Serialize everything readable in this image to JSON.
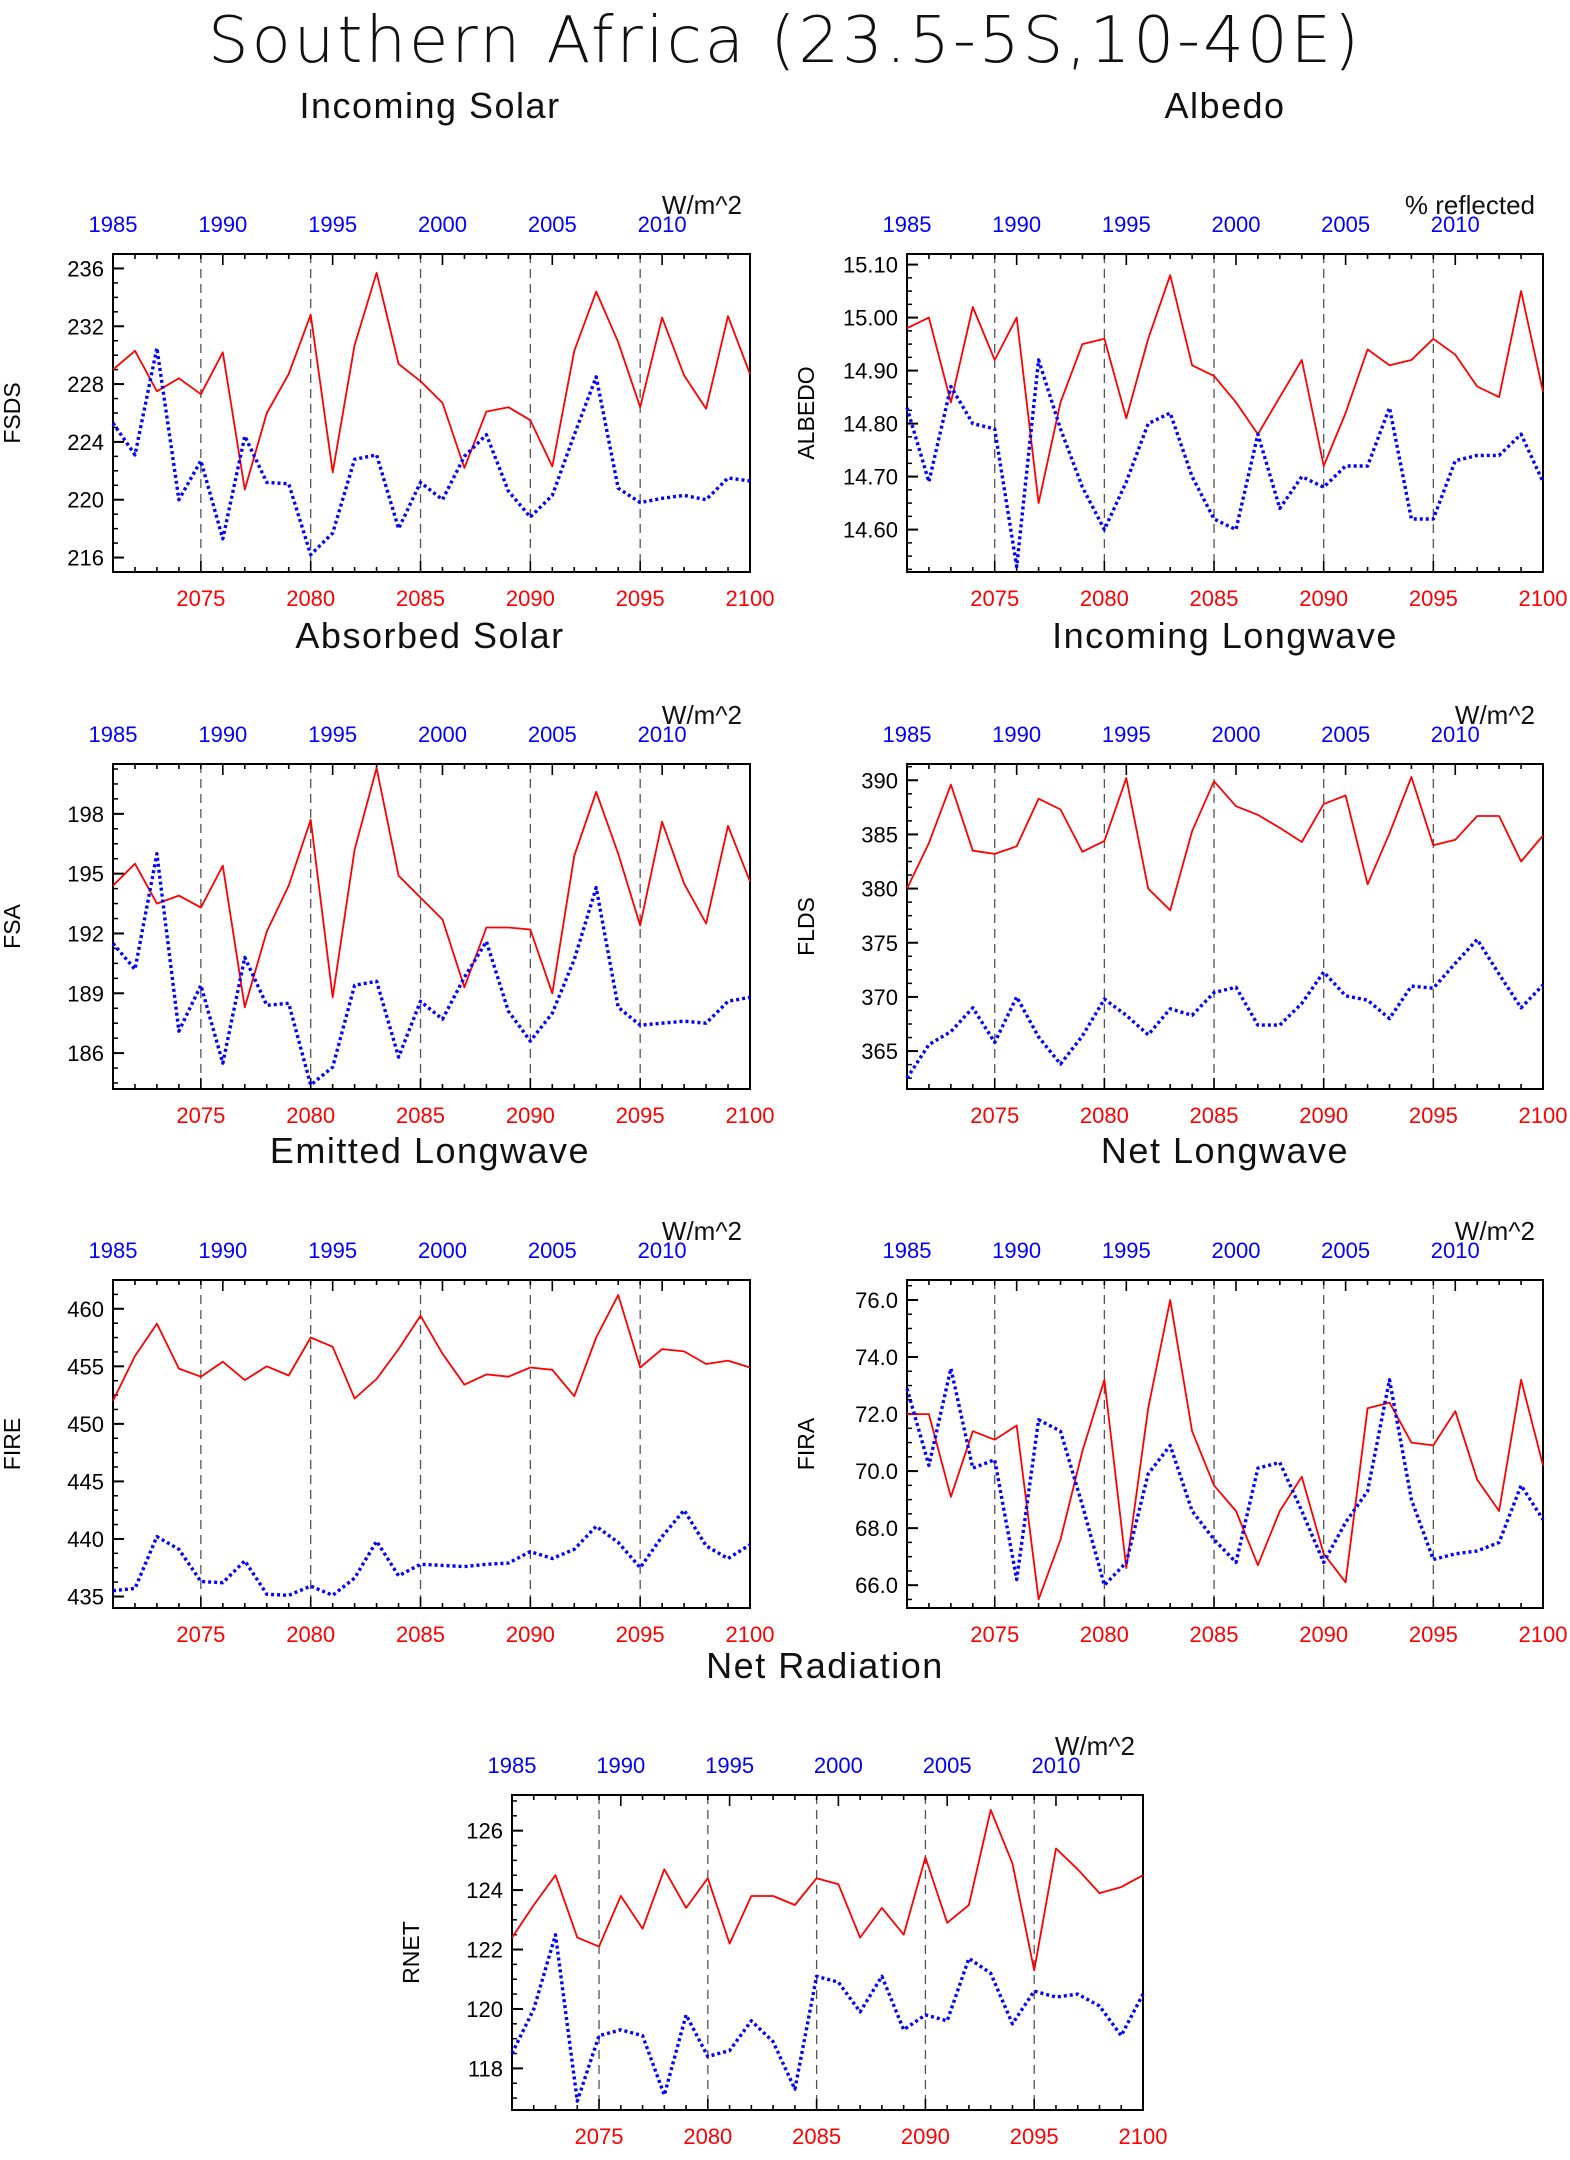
{
  "title": "Southern Africa (23.5-5S,10-40E)",
  "colors": {
    "future": "#ff0000",
    "historical": "#0000ff",
    "axis": "#000000"
  },
  "chart_data": [
    {
      "type": "line",
      "title": "Incoming Solar",
      "units": "W/m^2",
      "ylabel": "FSDS",
      "ylim": [
        215,
        237
      ],
      "yticks": [
        216,
        220,
        224,
        228,
        232,
        236
      ],
      "yfmt": 0,
      "x_future": {
        "range": [
          2071,
          2100
        ],
        "ticks": [
          2075,
          2080,
          2085,
          2090,
          2095,
          2100
        ]
      },
      "x_hist": {
        "range": [
          1985,
          2014
        ],
        "ticks": [
          1985,
          1990,
          1995,
          2000,
          2005,
          2010
        ]
      },
      "series": [
        {
          "role": "future",
          "values": [
            229.0,
            230.3,
            227.5,
            228.4,
            227.3,
            230.2,
            220.7,
            226.0,
            228.7,
            232.8,
            221.9,
            230.7,
            235.7,
            229.4,
            228.2,
            226.7,
            222.2,
            226.1,
            226.4,
            225.5,
            222.3,
            230.3,
            234.4,
            230.9,
            226.4,
            232.6,
            228.6,
            226.3,
            232.7,
            228.7
          ]
        },
        {
          "role": "historical",
          "values": [
            225.3,
            223.1,
            230.5,
            220.0,
            222.7,
            217.3,
            224.4,
            221.2,
            221.1,
            216.2,
            217.7,
            222.8,
            223.1,
            218.0,
            221.2,
            220.0,
            223.0,
            224.5,
            220.6,
            218.8,
            220.3,
            224.5,
            228.5,
            220.8,
            219.8,
            220.1,
            220.3,
            220.0,
            221.5,
            221.3
          ]
        }
      ]
    },
    {
      "type": "line",
      "title": "Albedo",
      "units": "% reflected",
      "ylabel": "ALBEDO",
      "ylim": [
        14.52,
        15.12
      ],
      "yticks": [
        14.6,
        14.7,
        14.8,
        14.9,
        15.0,
        15.1
      ],
      "yfmt": 2,
      "x_future": {
        "range": [
          2071,
          2100
        ],
        "ticks": [
          2075,
          2080,
          2085,
          2090,
          2095,
          2100
        ]
      },
      "x_hist": {
        "range": [
          1985,
          2014
        ],
        "ticks": [
          1985,
          1990,
          1995,
          2000,
          2005,
          2010
        ]
      },
      "series": [
        {
          "role": "future",
          "values": [
            14.98,
            15.0,
            14.84,
            15.02,
            14.92,
            15.0,
            14.65,
            14.84,
            14.95,
            14.96,
            14.81,
            14.96,
            15.08,
            14.91,
            14.89,
            14.84,
            14.78,
            14.85,
            14.92,
            14.72,
            14.82,
            14.94,
            14.91,
            14.92,
            14.96,
            14.93,
            14.87,
            14.85,
            15.05,
            14.86
          ]
        },
        {
          "role": "historical",
          "values": [
            14.83,
            14.69,
            14.87,
            14.8,
            14.79,
            14.53,
            14.92,
            14.79,
            14.68,
            14.6,
            14.69,
            14.8,
            14.82,
            14.7,
            14.62,
            14.6,
            14.78,
            14.64,
            14.7,
            14.68,
            14.72,
            14.72,
            14.83,
            14.62,
            14.62,
            14.73,
            14.74,
            14.74,
            14.78,
            14.69
          ]
        }
      ]
    },
    {
      "type": "line",
      "title": "Absorbed Solar",
      "units": "W/m^2",
      "ylabel": "FSA",
      "ylim": [
        184.2,
        200.5
      ],
      "yticks": [
        186,
        189,
        192,
        195,
        198
      ],
      "yfmt": 0,
      "x_future": {
        "range": [
          2071,
          2100
        ],
        "ticks": [
          2075,
          2080,
          2085,
          2090,
          2095,
          2100
        ]
      },
      "x_hist": {
        "range": [
          1985,
          2014
        ],
        "ticks": [
          1985,
          1990,
          1995,
          2000,
          2005,
          2010
        ]
      },
      "series": [
        {
          "role": "future",
          "values": [
            194.4,
            195.5,
            193.5,
            193.9,
            193.3,
            195.4,
            188.3,
            192.1,
            194.4,
            197.7,
            188.8,
            196.2,
            200.3,
            194.9,
            193.8,
            192.7,
            189.3,
            192.3,
            192.3,
            192.2,
            189.0,
            195.9,
            199.1,
            196.0,
            192.4,
            197.6,
            194.5,
            192.5,
            197.4,
            194.6
          ]
        },
        {
          "role": "historical",
          "values": [
            191.5,
            190.2,
            196.0,
            187.1,
            189.4,
            185.5,
            190.8,
            188.4,
            188.5,
            184.4,
            185.3,
            189.4,
            189.6,
            185.8,
            188.6,
            187.7,
            189.8,
            191.6,
            188.1,
            186.6,
            188.0,
            190.7,
            194.3,
            188.3,
            187.4,
            187.5,
            187.6,
            187.5,
            188.6,
            188.8
          ]
        }
      ]
    },
    {
      "type": "line",
      "title": "Incoming Longwave",
      "units": "W/m^2",
      "ylabel": "FLDS",
      "ylim": [
        361.5,
        391.5
      ],
      "yticks": [
        365,
        370,
        375,
        380,
        385,
        390
      ],
      "yfmt": 0,
      "x_future": {
        "range": [
          2071,
          2100
        ],
        "ticks": [
          2075,
          2080,
          2085,
          2090,
          2095,
          2100
        ]
      },
      "x_hist": {
        "range": [
          1985,
          2014
        ],
        "ticks": [
          1985,
          1990,
          1995,
          2000,
          2005,
          2010
        ]
      },
      "series": [
        {
          "role": "future",
          "values": [
            380.0,
            384.2,
            389.6,
            383.5,
            383.2,
            383.9,
            388.3,
            387.3,
            383.4,
            384.4,
            390.2,
            380.0,
            378.0,
            385.3,
            389.9,
            387.6,
            386.8,
            385.6,
            384.3,
            387.8,
            388.6,
            380.4,
            385.1,
            390.3,
            384.0,
            384.5,
            386.7,
            386.7,
            382.5,
            384.9
          ]
        },
        {
          "role": "historical",
          "values": [
            362.5,
            365.6,
            366.8,
            369.0,
            365.8,
            370.0,
            366.3,
            363.8,
            366.4,
            369.8,
            368.3,
            366.5,
            368.9,
            368.3,
            370.4,
            370.9,
            367.4,
            367.4,
            369.4,
            372.3,
            370.1,
            369.7,
            368.0,
            371.0,
            370.8,
            373.1,
            375.3,
            372.1,
            369.0,
            371.1
          ]
        }
      ]
    },
    {
      "type": "line",
      "title": "Emitted Longwave",
      "units": "W/m^2",
      "ylabel": "FIRE",
      "ylim": [
        434.0,
        462.5
      ],
      "yticks": [
        435,
        440,
        445,
        450,
        455,
        460
      ],
      "yfmt": 0,
      "x_future": {
        "range": [
          2071,
          2100
        ],
        "ticks": [
          2075,
          2080,
          2085,
          2090,
          2095,
          2100
        ]
      },
      "x_hist": {
        "range": [
          1985,
          2014
        ],
        "ticks": [
          1985,
          1990,
          1995,
          2000,
          2005,
          2010
        ]
      },
      "series": [
        {
          "role": "future",
          "values": [
            452.0,
            455.9,
            458.7,
            454.8,
            454.1,
            455.4,
            453.8,
            455.0,
            454.2,
            457.5,
            456.7,
            452.2,
            453.9,
            456.5,
            459.4,
            456.1,
            453.4,
            454.3,
            454.1,
            454.9,
            454.7,
            452.4,
            457.5,
            461.2,
            454.9,
            456.5,
            456.3,
            455.2,
            455.5,
            454.9
          ]
        },
        {
          "role": "historical",
          "values": [
            435.5,
            435.7,
            440.2,
            439.1,
            436.3,
            436.2,
            438.1,
            435.2,
            435.1,
            435.9,
            435.1,
            436.6,
            439.8,
            436.8,
            437.8,
            437.7,
            437.6,
            437.8,
            437.9,
            438.9,
            438.3,
            439.1,
            441.1,
            439.7,
            437.5,
            440.2,
            442.5,
            439.4,
            438.3,
            439.5
          ]
        }
      ]
    },
    {
      "type": "line",
      "title": "Net Longwave",
      "units": "W/m^2",
      "ylabel": "FIRA",
      "ylim": [
        65.2,
        76.7
      ],
      "yticks": [
        66.0,
        68.0,
        70.0,
        72.0,
        74.0,
        76.0
      ],
      "yfmt": 1,
      "x_future": {
        "range": [
          2071,
          2100
        ],
        "ticks": [
          2075,
          2080,
          2085,
          2090,
          2095,
          2100
        ]
      },
      "x_hist": {
        "range": [
          1985,
          2014
        ],
        "ticks": [
          1985,
          1990,
          1995,
          2000,
          2005,
          2010
        ]
      },
      "series": [
        {
          "role": "future",
          "values": [
            72.0,
            72.0,
            69.1,
            71.4,
            71.1,
            71.6,
            65.5,
            67.6,
            70.7,
            73.2,
            66.6,
            72.2,
            76.0,
            71.4,
            69.5,
            68.6,
            66.7,
            68.6,
            69.8,
            67.1,
            66.1,
            72.2,
            72.4,
            71.0,
            70.9,
            72.1,
            69.7,
            68.6,
            73.2,
            70.2
          ]
        },
        {
          "role": "historical",
          "values": [
            72.9,
            70.2,
            73.6,
            70.1,
            70.4,
            66.2,
            71.8,
            71.4,
            68.8,
            66.0,
            66.8,
            69.9,
            70.9,
            68.6,
            67.6,
            66.8,
            70.1,
            70.3,
            68.6,
            66.8,
            68.2,
            69.3,
            73.2,
            69.0,
            66.9,
            67.1,
            67.2,
            67.5,
            69.5,
            68.3
          ]
        }
      ]
    },
    {
      "type": "line",
      "title": "Net Radiation",
      "units": "W/m^2",
      "ylabel": "RNET",
      "ylim": [
        116.6,
        127.2
      ],
      "yticks": [
        118,
        120,
        122,
        124,
        126
      ],
      "yfmt": 0,
      "x_future": {
        "range": [
          2071,
          2100
        ],
        "ticks": [
          2075,
          2080,
          2085,
          2090,
          2095,
          2100
        ]
      },
      "x_hist": {
        "range": [
          1985,
          2014
        ],
        "ticks": [
          1985,
          1990,
          1995,
          2000,
          2005,
          2010
        ]
      },
      "series": [
        {
          "role": "future",
          "values": [
            122.4,
            123.5,
            124.5,
            122.4,
            122.1,
            123.8,
            122.7,
            124.7,
            123.4,
            124.4,
            122.2,
            123.8,
            123.8,
            123.5,
            124.4,
            124.2,
            122.4,
            123.4,
            122.5,
            125.1,
            122.9,
            123.5,
            126.7,
            124.9,
            121.3,
            125.4,
            124.7,
            123.9,
            124.1,
            124.5
          ]
        },
        {
          "role": "historical",
          "values": [
            118.5,
            120.0,
            122.5,
            116.9,
            119.1,
            119.3,
            119.1,
            117.1,
            119.8,
            118.4,
            118.6,
            119.6,
            118.9,
            117.3,
            121.1,
            120.9,
            119.9,
            121.1,
            119.3,
            119.8,
            119.6,
            121.7,
            121.2,
            119.5,
            120.6,
            120.4,
            120.5,
            120.1,
            119.1,
            120.5
          ]
        }
      ]
    }
  ]
}
